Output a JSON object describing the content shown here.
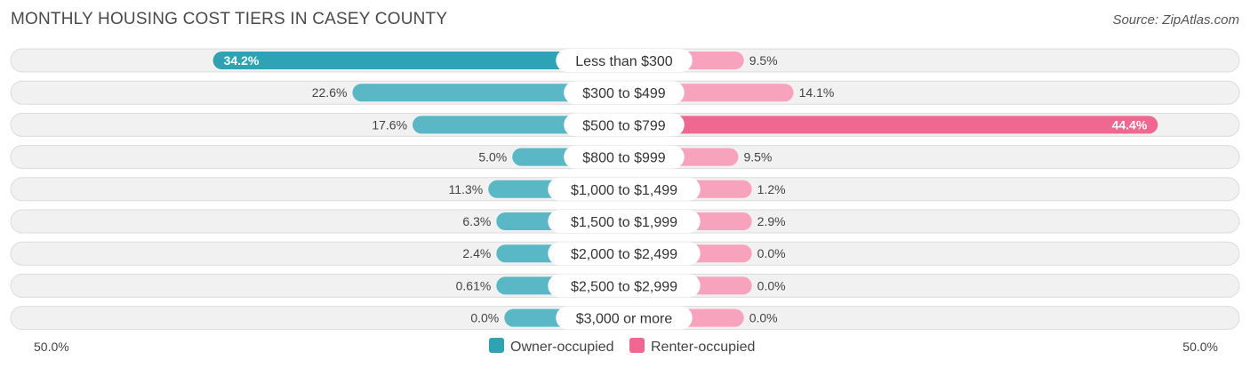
{
  "title": "MONTHLY HOUSING COST TIERS IN CASEY COUNTY",
  "source": "Source: ZipAtlas.com",
  "chart_data": {
    "type": "bar",
    "orientation": "diverging-horizontal",
    "categories": [
      "Less than $300",
      "$300 to $499",
      "$500 to $799",
      "$800 to $999",
      "$1,000 to $1,499",
      "$1,500 to $1,999",
      "$2,000 to $2,499",
      "$2,500 to $2,999",
      "$3,000 or more"
    ],
    "series": [
      {
        "name": "Owner-occupied",
        "color": "#5ab8c6",
        "color_strong": "#2ea3b3",
        "values": [
          34.2,
          22.6,
          17.6,
          5.0,
          11.3,
          6.3,
          2.4,
          0.61,
          0.0
        ],
        "labels": [
          "34.2%",
          "22.6%",
          "17.6%",
          "5.0%",
          "11.3%",
          "6.3%",
          "2.4%",
          "0.61%",
          "0.0%"
        ]
      },
      {
        "name": "Renter-occupied",
        "color": "#f7a3bd",
        "color_strong": "#f06792",
        "values": [
          9.5,
          14.1,
          44.4,
          9.5,
          1.2,
          2.9,
          0.0,
          0.0,
          0.0
        ],
        "labels": [
          "9.5%",
          "14.1%",
          "44.4%",
          "9.5%",
          "1.2%",
          "2.9%",
          "0.0%",
          "0.0%",
          "0.0%"
        ]
      }
    ],
    "axis_min_label": "50.0%",
    "axis_max_label": "50.0%",
    "xlim": [
      -50,
      50
    ],
    "legend_position": "bottom-center"
  }
}
